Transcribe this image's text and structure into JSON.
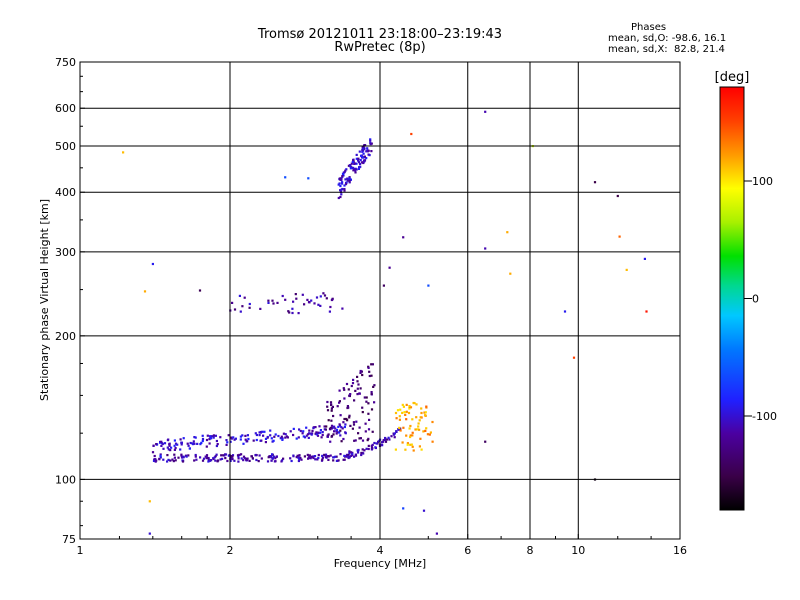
{
  "header": {
    "title_line1": "Tromsø 20121011 23:18:00–23:19:43",
    "title_line2": "RwPretec (8p)"
  },
  "stats": {
    "heading": "Phases",
    "line_o": "mean, sd,O: -98.6, 16.1",
    "line_x": "mean, sd,X:  82.8, 21.4"
  },
  "colorbar": {
    "unit": "[deg]",
    "ticks": [
      "100",
      "0",
      "-100"
    ],
    "tick_values": [
      100,
      0,
      -100
    ],
    "range": [
      -180,
      180
    ]
  },
  "chart_data": {
    "type": "scatter",
    "xlabel": "Frequency [MHz]",
    "ylabel": "Stationary phase Virtual Height [km]",
    "x_scale": "log",
    "y_scale": "log",
    "xlim": [
      1,
      16
    ],
    "ylim": [
      75,
      750
    ],
    "xticks": [
      1,
      2,
      4,
      6,
      8,
      10,
      16
    ],
    "xtick_labels": [
      "1",
      "2",
      "4",
      "6",
      "8",
      "10",
      "16"
    ],
    "yticks": [
      75,
      100,
      200,
      300,
      400,
      500,
      600,
      750
    ],
    "ytick_labels": [
      "75",
      "100",
      "200",
      "300",
      "400",
      "500",
      "600",
      "750"
    ],
    "x_gridlines": [
      2,
      4,
      6,
      8,
      10
    ],
    "y_gridlines": [
      100,
      200,
      300,
      400,
      500,
      600
    ],
    "grid": true,
    "color_by": "phase_deg",
    "traces": [
      {
        "label": "E-region lower trace",
        "x_range": [
          1.4,
          4.4
        ],
        "y_range": [
          108,
          128
        ],
        "phase_deg": -112,
        "count": 260
      },
      {
        "label": "E-region upper trace",
        "x_range": [
          1.4,
          3.5
        ],
        "y_range": [
          113,
          132
        ],
        "phase_deg": -102,
        "count": 180
      },
      {
        "label": "E-region X trace",
        "x_range": [
          4.3,
          5.1
        ],
        "y_range": [
          115,
          145
        ],
        "phase_deg": 120,
        "count": 70
      },
      {
        "label": "Es vertical column",
        "x_range": [
          3.1,
          3.9
        ],
        "y_range": [
          120,
          180
        ],
        "phase_deg": -130,
        "count": 110
      },
      {
        "label": "Mid layer",
        "x_range": [
          2.0,
          3.4
        ],
        "y_range": [
          223,
          246
        ],
        "phase_deg": -115,
        "count": 45
      },
      {
        "label": "F-region cluster",
        "x_range": [
          3.3,
          3.85
        ],
        "y_range": [
          400,
          520
        ],
        "phase_deg": -105,
        "count": 120
      }
    ],
    "points": [
      {
        "x": 1.22,
        "y": 485,
        "phase": 115
      },
      {
        "x": 1.35,
        "y": 248,
        "phase": 120
      },
      {
        "x": 1.4,
        "y": 283,
        "phase": -90
      },
      {
        "x": 1.74,
        "y": 249,
        "phase": -145
      },
      {
        "x": 2.58,
        "y": 430,
        "phase": -65
      },
      {
        "x": 2.87,
        "y": 428,
        "phase": -65
      },
      {
        "x": 4.07,
        "y": 255,
        "phase": -140
      },
      {
        "x": 4.18,
        "y": 278,
        "phase": -120
      },
      {
        "x": 4.45,
        "y": 322,
        "phase": -120
      },
      {
        "x": 4.62,
        "y": 530,
        "phase": 150
      },
      {
        "x": 5.0,
        "y": 255,
        "phase": -65
      },
      {
        "x": 6.5,
        "y": 590,
        "phase": -110
      },
      {
        "x": 6.5,
        "y": 305,
        "phase": -110
      },
      {
        "x": 7.2,
        "y": 330,
        "phase": 120
      },
      {
        "x": 7.3,
        "y": 270,
        "phase": 120
      },
      {
        "x": 8.1,
        "y": 500,
        "phase": 75
      },
      {
        "x": 9.4,
        "y": 225,
        "phase": -90
      },
      {
        "x": 9.8,
        "y": 180,
        "phase": 150
      },
      {
        "x": 10.8,
        "y": 420,
        "phase": -150
      },
      {
        "x": 12.0,
        "y": 393,
        "phase": -150
      },
      {
        "x": 12.1,
        "y": 323,
        "phase": 140
      },
      {
        "x": 12.5,
        "y": 275,
        "phase": 115
      },
      {
        "x": 13.6,
        "y": 290,
        "phase": -90
      },
      {
        "x": 13.7,
        "y": 225,
        "phase": 170
      },
      {
        "x": 1.45,
        "y": 112,
        "phase": -80
      },
      {
        "x": 1.38,
        "y": 90,
        "phase": 115
      },
      {
        "x": 1.38,
        "y": 77,
        "phase": -100
      },
      {
        "x": 4.45,
        "y": 87,
        "phase": -70
      },
      {
        "x": 4.9,
        "y": 86,
        "phase": -100
      },
      {
        "x": 5.2,
        "y": 77,
        "phase": -110
      },
      {
        "x": 10.8,
        "y": 100,
        "phase": -170
      },
      {
        "x": 6.5,
        "y": 120,
        "phase": -140
      }
    ]
  }
}
